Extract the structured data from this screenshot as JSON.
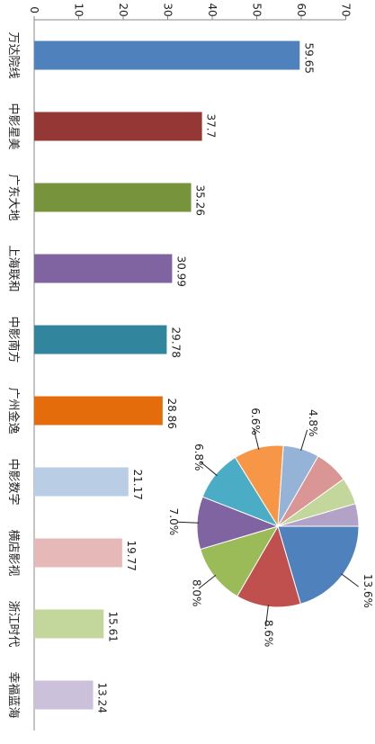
{
  "chart_data": [
    {
      "type": "bar",
      "orientation": "horizontal",
      "rotated_view": "rotated 90 degrees clockwise",
      "categories": [
        "万达院线",
        "中影星美",
        "广东大地",
        "上海联和",
        "中影南方",
        "广州金逸",
        "中影数字",
        "横店影视",
        "浙江时代",
        "幸福蓝海"
      ],
      "values": [
        59.65,
        37.7,
        35.26,
        30.99,
        29.78,
        28.86,
        21.17,
        19.77,
        15.61,
        13.24
      ],
      "data_labels": [
        "59.65",
        "37.7",
        "35.26",
        "30.99",
        "29.78",
        "28.86",
        "21.17",
        "19.77",
        "15.61",
        "13.24"
      ],
      "colors": [
        "#4f81bd",
        "#953735",
        "#77933c",
        "#8064a2",
        "#31859c",
        "#e46c0a",
        "#b9cde5",
        "#e6b9b8",
        "#c3d69b",
        "#ccc1da"
      ],
      "value_axis": {
        "min": 0,
        "max": 70,
        "step": 10,
        "tick_labels": [
          "0",
          "10",
          "20",
          "30",
          "40",
          "50",
          "60",
          "70"
        ]
      },
      "grid": false,
      "legend": "none"
    },
    {
      "type": "pie",
      "slices": [
        {
          "value": 13.6,
          "label": "13.6%",
          "color": "#4f81bd"
        },
        {
          "value": 8.6,
          "label": "8.6%",
          "color": "#c0504d"
        },
        {
          "value": 8.0,
          "label": "8.0%",
          "color": "#9bbb59"
        },
        {
          "value": 7.0,
          "label": "7.0%",
          "color": "#8064a2"
        },
        {
          "value": 6.8,
          "label": "6.8%",
          "color": "#4bacc6"
        },
        {
          "value": 6.6,
          "label": "6.6%",
          "color": "#f79646"
        },
        {
          "value": 4.8,
          "label": "4.8%",
          "color": "#95b3d7"
        },
        {
          "value": 4.5,
          "label": "",
          "color": "#d99694"
        },
        {
          "value": 3.6,
          "label": "",
          "color": "#c3d69b"
        },
        {
          "value": 3.0,
          "label": "",
          "color": "#b3a2c7"
        }
      ],
      "legend": "none"
    }
  ]
}
